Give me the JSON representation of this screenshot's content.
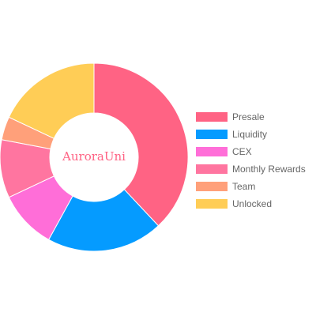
{
  "chart_data": {
    "type": "doughnut",
    "center_text": "AuroraUni",
    "legend_position": "right",
    "series": [
      {
        "name": "Presale",
        "value": 38,
        "color": "#ff6384"
      },
      {
        "name": "Liquidity",
        "value": 20,
        "color": "#059bff"
      },
      {
        "name": "CEX",
        "value": 10,
        "color": "#ff6ed8"
      },
      {
        "name": "Monthly Rewards",
        "value": 10,
        "color": "#ff75a0"
      },
      {
        "name": "Team",
        "value": 4,
        "color": "#ffa07a"
      },
      {
        "name": "Unlocked",
        "value": 18,
        "color": "#ffcd56"
      }
    ]
  }
}
